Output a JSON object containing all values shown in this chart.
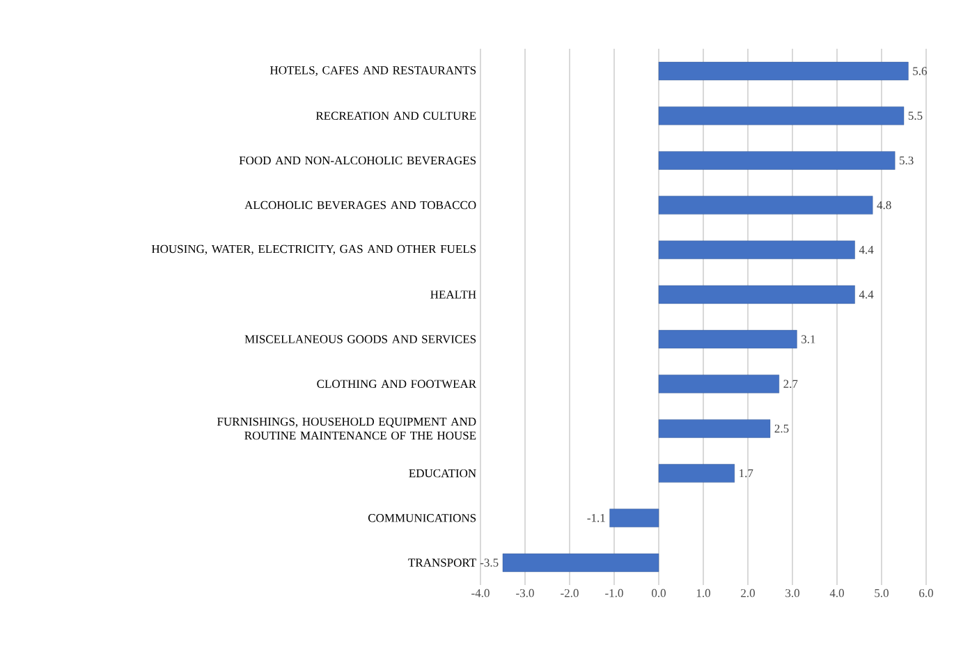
{
  "chart_data": {
    "type": "bar",
    "orientation": "horizontal",
    "categories": [
      "HOTELS, CAFES AND RESTAURANTS",
      "RECREATION AND CULTURE",
      "FOOD AND NON-ALCOHOLIC BEVERAGES",
      "ALCOHOLIC BEVERAGES AND  TOBACCO",
      "HOUSING, WATER, ELECTRICITY, GAS AND OTHER FUELS",
      "HEALTH",
      "MISCELLANEOUS GOODS AND SERVICES",
      "CLOTHING AND FOOTWEAR",
      "FURNISHINGS, HOUSEHOLD EQUIPMENT AND ROUTINE MAINTENANCE OF THE HOUSE",
      "EDUCATION",
      "COMMUNICATIONS",
      "TRANSPORT"
    ],
    "values": [
      5.6,
      5.5,
      5.3,
      4.8,
      4.4,
      4.4,
      3.1,
      2.7,
      2.5,
      1.7,
      -1.1,
      -3.5
    ],
    "color": "#4472c4",
    "data_labels": true,
    "xlim": [
      -4,
      6
    ],
    "xticks": [
      {
        "value": -4,
        "label": "-4.0"
      },
      {
        "value": -3,
        "label": "-3.0"
      },
      {
        "value": -2,
        "label": "-2.0"
      },
      {
        "value": -1,
        "label": "-1.0"
      },
      {
        "value": 0,
        "label": "0.0"
      },
      {
        "value": 1,
        "label": "1.0"
      },
      {
        "value": 2,
        "label": "2.0"
      },
      {
        "value": 3,
        "label": "3.0"
      },
      {
        "value": 4,
        "label": "4.0"
      },
      {
        "value": 5,
        "label": "5.0"
      },
      {
        "value": 6,
        "label": "6.0"
      }
    ],
    "grid": "x"
  }
}
